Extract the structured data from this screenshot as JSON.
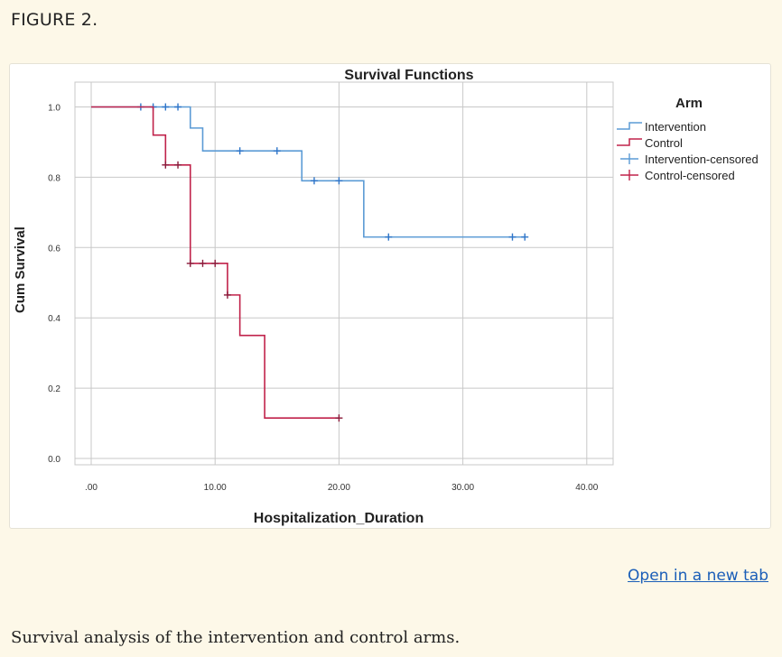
{
  "figure_label": "FIGURE 2.",
  "open_link": "Open in a new tab",
  "caption": "Survival analysis of the intervention and control arms.",
  "colors": {
    "page_bg": "#fdf8e8",
    "intervention": "#5b9bd5",
    "intervention_censor": "#2e75c9",
    "control": "#c0224a",
    "control_censor": "#8b1a3a",
    "link": "#1a5eb8"
  },
  "chart_data": {
    "type": "line",
    "subtype": "kaplan-meier step",
    "title": "Survival Functions",
    "xlabel": "Hospitalization_Duration",
    "ylabel": "Cum Survival",
    "xlim": [
      0,
      42
    ],
    "ylim": [
      0,
      1.0
    ],
    "x_ticks": [
      0,
      10,
      20,
      30,
      40
    ],
    "x_tick_labels": [
      ".00",
      "10.00",
      "20.00",
      "30.00",
      "40.00"
    ],
    "y_ticks": [
      0,
      0.2,
      0.4,
      0.6,
      0.8,
      1.0
    ],
    "y_tick_labels": [
      "0.0",
      "0.2",
      "0.4",
      "0.6",
      "0.8",
      "1.0"
    ],
    "grid": true,
    "legend_title": "Arm",
    "legend_position": "top-right",
    "legend_entries": [
      "Intervention",
      "Control",
      "Intervention-censored",
      "Control-censored"
    ],
    "series": [
      {
        "name": "Intervention",
        "steps": [
          [
            0,
            1.0
          ],
          [
            8,
            0.94
          ],
          [
            9,
            0.875
          ],
          [
            17,
            0.79
          ],
          [
            22,
            0.63
          ],
          [
            35,
            0.63
          ]
        ],
        "censored": [
          [
            4,
            1.0
          ],
          [
            5,
            1.0
          ],
          [
            6,
            1.0
          ],
          [
            7,
            1.0
          ],
          [
            12,
            0.875
          ],
          [
            15,
            0.875
          ],
          [
            18,
            0.79
          ],
          [
            20,
            0.79
          ],
          [
            24,
            0.63
          ],
          [
            34,
            0.63
          ],
          [
            35,
            0.63
          ]
        ]
      },
      {
        "name": "Control",
        "steps": [
          [
            0,
            1.0
          ],
          [
            5,
            0.92
          ],
          [
            6,
            0.835
          ],
          [
            8,
            0.555
          ],
          [
            11,
            0.465
          ],
          [
            12,
            0.35
          ],
          [
            14,
            0.115
          ],
          [
            20,
            0.115
          ]
        ],
        "censored": [
          [
            6,
            0.835
          ],
          [
            7,
            0.835
          ],
          [
            8,
            0.555
          ],
          [
            9,
            0.555
          ],
          [
            10,
            0.555
          ],
          [
            11,
            0.465
          ],
          [
            20,
            0.115
          ]
        ]
      }
    ]
  }
}
